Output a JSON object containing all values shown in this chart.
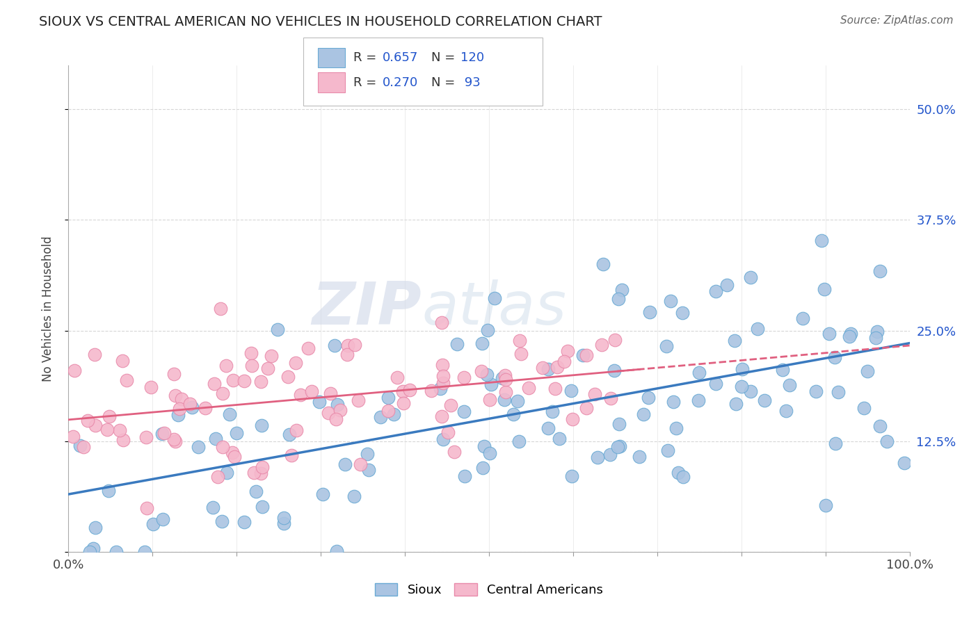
{
  "title": "SIOUX VS CENTRAL AMERICAN NO VEHICLES IN HOUSEHOLD CORRELATION CHART",
  "source": "Source: ZipAtlas.com",
  "ylabel": "No Vehicles in Household",
  "xlim": [
    0.0,
    1.0
  ],
  "ylim": [
    0.0,
    0.55
  ],
  "y_ticks": [
    0.0,
    0.125,
    0.25,
    0.375,
    0.5
  ],
  "y_tick_labels": [
    "",
    "12.5%",
    "25.0%",
    "37.5%",
    "50.0%"
  ],
  "sioux_color": "#aac4e2",
  "sioux_edge_color": "#6aaad4",
  "central_color": "#f5b8cc",
  "central_edge_color": "#e88aaa",
  "sioux_line_color": "#3a7abf",
  "central_line_color": "#e06080",
  "sioux_R": 0.657,
  "sioux_N": 120,
  "central_R": 0.27,
  "central_N": 93,
  "legend_color": "#2255cc",
  "watermark_text": "ZIPatlas",
  "background_color": "#ffffff",
  "grid_color": "#cccccc",
  "sioux_intercept": 0.04,
  "sioux_slope": 0.22,
  "central_intercept": 0.155,
  "central_slope": 0.06,
  "title_fontsize": 14,
  "source_fontsize": 11,
  "tick_fontsize": 13,
  "ylabel_fontsize": 12
}
